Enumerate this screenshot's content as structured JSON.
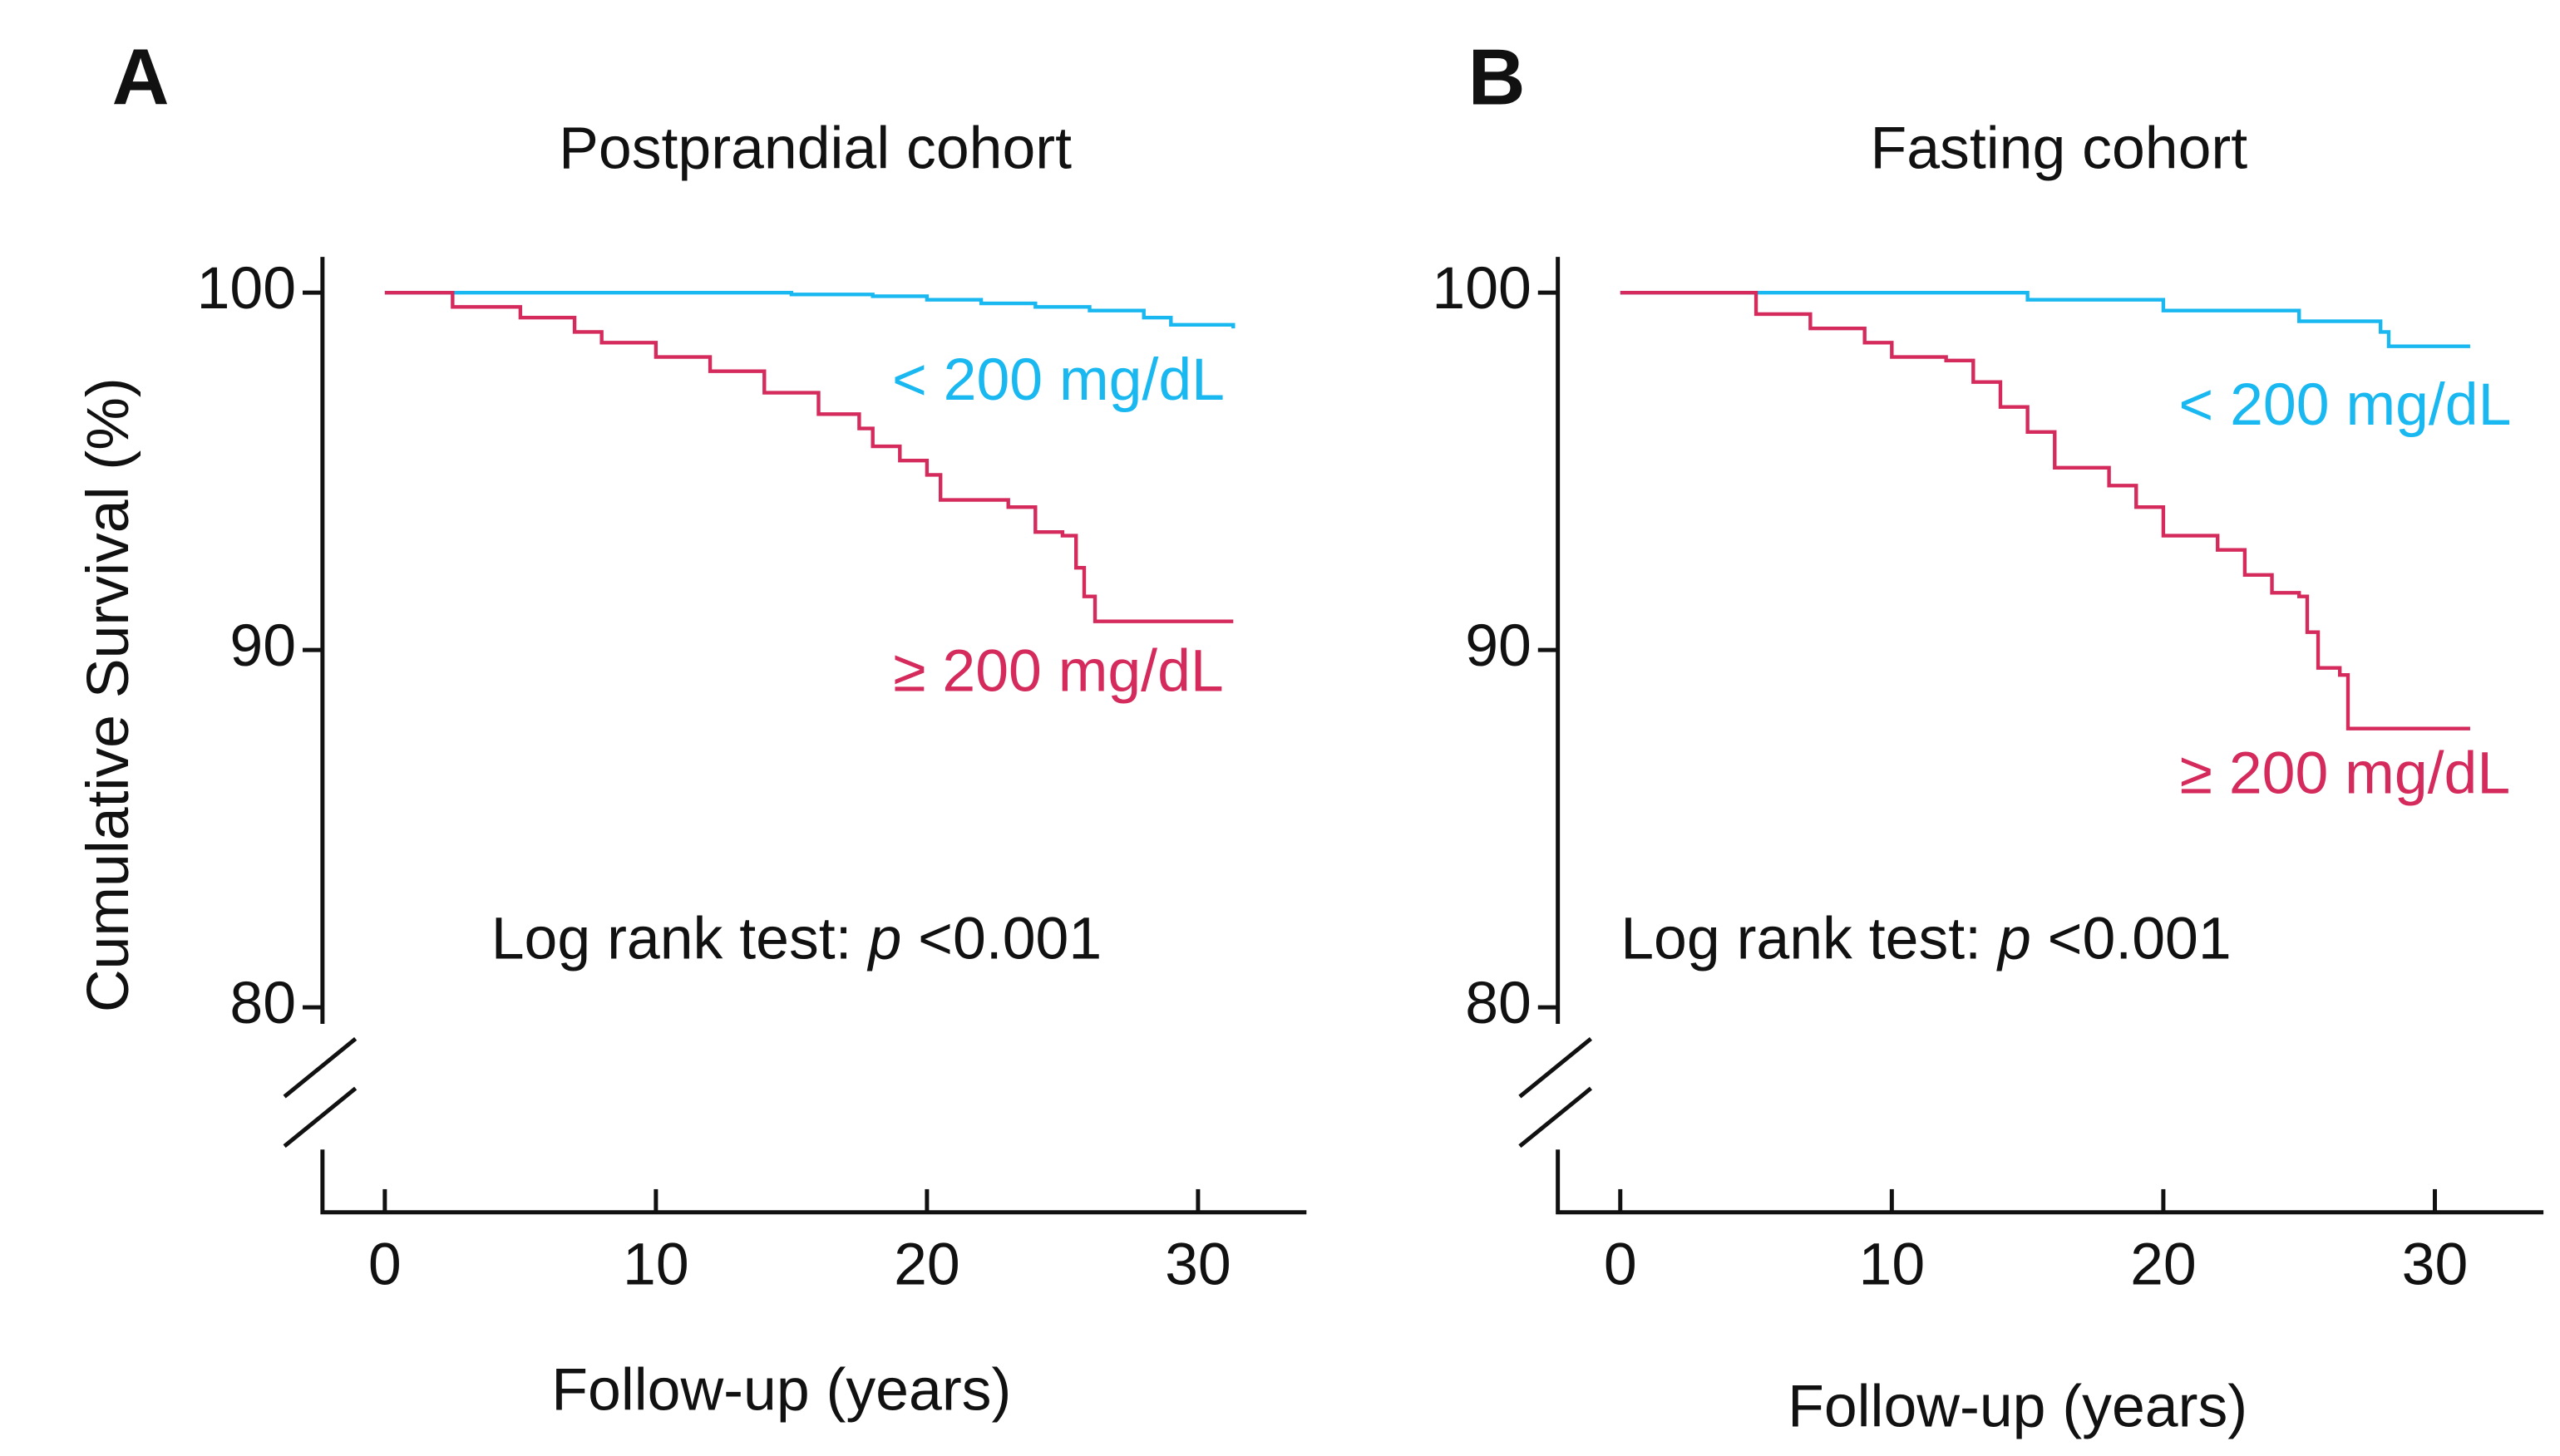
{
  "chart_data": [
    {
      "type": "step",
      "panel_label": "A",
      "title": "Postprandial cohort",
      "xlabel": "Follow-up  (years)",
      "ylabel": "Cumulative  Survival  (%)",
      "annotation_prefix": "Log rank test:",
      "annotation_italic": "p",
      "annotation_suffix": "<0.001",
      "xlim": [
        -2.3,
        34
      ],
      "ylim": [
        80,
        101
      ],
      "xticks": [
        0,
        10,
        20,
        30
      ],
      "yticks": [
        80,
        90,
        100
      ],
      "series": [
        {
          "name": "< 200 mg/dL",
          "color": "#1ab8f0",
          "x": [
            0,
            5,
            10,
            15,
            18,
            20,
            22,
            24,
            26,
            28,
            29,
            31.3
          ],
          "values": [
            100,
            100,
            100,
            99.95,
            99.9,
            99.8,
            99.7,
            99.6,
            99.5,
            99.3,
            99.1,
            99.0
          ]
        },
        {
          "name": "≥ 200 mg/dL",
          "color": "#d42a5c",
          "x": [
            0,
            2.5,
            5,
            7,
            8,
            10,
            12,
            14,
            16,
            17.5,
            18,
            19,
            20,
            20.5,
            23,
            24,
            25,
            25.5,
            25.8,
            26.2,
            31.3
          ],
          "values": [
            100,
            99.6,
            99.3,
            98.9,
            98.6,
            98.2,
            97.8,
            97.2,
            96.6,
            96.2,
            95.7,
            95.3,
            94.9,
            94.2,
            94.0,
            93.3,
            93.2,
            92.3,
            91.5,
            90.8,
            90.8
          ]
        }
      ]
    },
    {
      "type": "step",
      "panel_label": "B",
      "title": "Fasting cohort",
      "xlabel": "Follow-up  (years)",
      "annotation_prefix": "Log rank test:",
      "annotation_italic": "p",
      "annotation_suffix": "<0.001",
      "xlim": [
        -2.3,
        34
      ],
      "ylim": [
        80,
        101
      ],
      "xticks": [
        0,
        10,
        20,
        30
      ],
      "yticks": [
        80,
        90,
        100
      ],
      "series": [
        {
          "name": "< 200 mg/dL",
          "color": "#1ab8f0",
          "x": [
            0,
            12,
            15,
            20,
            25,
            28,
            28.3,
            31.3
          ],
          "values": [
            100,
            100,
            99.8,
            99.5,
            99.2,
            98.9,
            98.5,
            98.5
          ]
        },
        {
          "name": "≥ 200 mg/dL",
          "color": "#d42a5c",
          "x": [
            0,
            4.5,
            5,
            7,
            9,
            10,
            12,
            13,
            14,
            15,
            16,
            18,
            19,
            20,
            22,
            23,
            24,
            25,
            25.3,
            25.7,
            26.5,
            26.8,
            31.3
          ],
          "values": [
            100,
            100,
            99.4,
            99.0,
            98.6,
            98.2,
            98.1,
            97.5,
            96.8,
            96.1,
            95.1,
            94.6,
            94.0,
            93.2,
            92.8,
            92.1,
            91.6,
            91.5,
            90.5,
            89.5,
            89.3,
            87.8,
            87.8
          ]
        }
      ]
    }
  ]
}
